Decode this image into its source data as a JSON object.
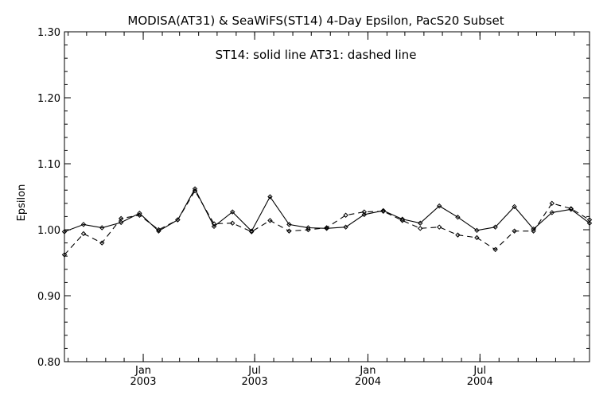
{
  "chart_data": {
    "type": "line",
    "title": "MODISA(AT31) & SeaWiFS(ST14) 4-Day Epsilon, PacS20 Subset",
    "annotation": "ST14: solid line   AT31: dashed line",
    "xlabel": "",
    "ylabel": "Epsilon",
    "ylim": [
      0.8,
      1.3
    ],
    "yticks": [
      "0.80",
      "0.90",
      "1.00",
      "1.10",
      "1.20",
      "1.30"
    ],
    "xlim": [
      "2002-08-26",
      "2004-12-26"
    ],
    "xticks": [
      {
        "date": "2003-01-01",
        "month": "Jan",
        "year": "2003"
      },
      {
        "date": "2003-07-01",
        "month": "Jul",
        "year": "2003"
      },
      {
        "date": "2004-01-01",
        "month": "Jan",
        "year": "2004"
      },
      {
        "date": "2004-07-01",
        "month": "Jul",
        "year": "2004"
      }
    ],
    "grid": false,
    "legend": "none",
    "series": [
      {
        "name": "ST14",
        "style": "solid",
        "color": "#000000",
        "points": [
          [
            "2002-08-26",
            0.997
          ],
          [
            "2002-09-26",
            1.008
          ],
          [
            "2002-10-26",
            1.003
          ],
          [
            "2002-11-26",
            1.011
          ],
          [
            "2002-12-26",
            1.025
          ],
          [
            "2003-01-26",
            0.998
          ],
          [
            "2003-02-26",
            1.015
          ],
          [
            "2003-03-26",
            1.062
          ],
          [
            "2003-04-26",
            1.005
          ],
          [
            "2003-05-26",
            1.027
          ],
          [
            "2003-06-26",
            0.998
          ],
          [
            "2003-07-26",
            1.05
          ],
          [
            "2003-08-26",
            1.008
          ],
          [
            "2003-09-26",
            1.003
          ],
          [
            "2003-10-26",
            1.002
          ],
          [
            "2003-11-26",
            1.004
          ],
          [
            "2003-12-26",
            1.023
          ],
          [
            "2004-01-26",
            1.029
          ],
          [
            "2004-02-26",
            1.016
          ],
          [
            "2004-03-26",
            1.01
          ],
          [
            "2004-04-26",
            1.036
          ],
          [
            "2004-05-26",
            1.019
          ],
          [
            "2004-06-26",
            0.999
          ],
          [
            "2004-07-26",
            1.004
          ],
          [
            "2004-08-26",
            1.035
          ],
          [
            "2004-09-26",
            1.001
          ],
          [
            "2004-10-26",
            1.026
          ],
          [
            "2004-11-26",
            1.031
          ],
          [
            "2004-12-26",
            1.01
          ]
        ]
      },
      {
        "name": "AT31",
        "style": "dashed",
        "color": "#000000",
        "points": [
          [
            "2002-08-26",
            0.962
          ],
          [
            "2002-09-26",
            0.994
          ],
          [
            "2002-10-26",
            0.98
          ],
          [
            "2002-11-26",
            1.017
          ],
          [
            "2002-12-26",
            1.022
          ],
          [
            "2003-01-26",
            1.0
          ],
          [
            "2003-02-26",
            1.015
          ],
          [
            "2003-03-26",
            1.059
          ],
          [
            "2003-04-26",
            1.009
          ],
          [
            "2003-05-26",
            1.01
          ],
          [
            "2003-06-26",
            0.997
          ],
          [
            "2003-07-26",
            1.014
          ],
          [
            "2003-08-26",
            0.998
          ],
          [
            "2003-09-26",
            1.0
          ],
          [
            "2003-10-26",
            1.003
          ],
          [
            "2003-11-26",
            1.022
          ],
          [
            "2003-12-26",
            1.027
          ],
          [
            "2004-01-26",
            1.028
          ],
          [
            "2004-02-26",
            1.014
          ],
          [
            "2004-03-26",
            1.002
          ],
          [
            "2004-04-26",
            1.004
          ],
          [
            "2004-05-26",
            0.992
          ],
          [
            "2004-06-26",
            0.988
          ],
          [
            "2004-07-26",
            0.97
          ],
          [
            "2004-08-26",
            0.998
          ],
          [
            "2004-09-26",
            0.998
          ],
          [
            "2004-10-26",
            1.04
          ],
          [
            "2004-11-26",
            1.032
          ],
          [
            "2004-12-26",
            1.015
          ]
        ]
      }
    ]
  }
}
